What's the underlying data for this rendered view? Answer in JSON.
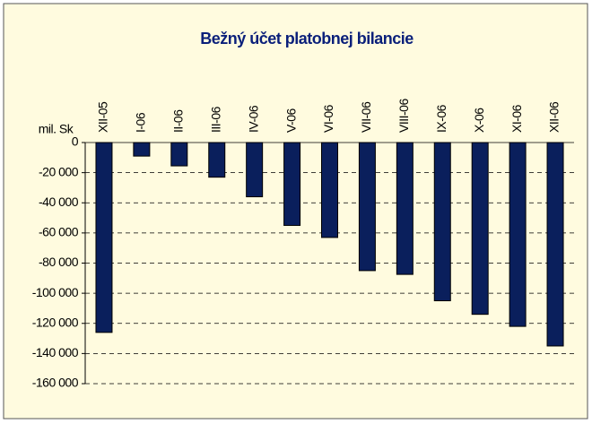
{
  "chart_data": {
    "type": "bar",
    "title": "Bežný účet platobnej bilancie",
    "y_label": "mil. Sk",
    "categories": [
      "XII-05",
      "I-06",
      "II-06",
      "III-06",
      "IV-06",
      "V-06",
      "VI-06",
      "VII-06",
      "VIII-06",
      "IX-06",
      "X-06",
      "XI-06",
      "XII-06"
    ],
    "values": [
      -126000,
      -9000,
      -15500,
      -23000,
      -36000,
      -55000,
      -63000,
      -85000,
      -87500,
      -105000,
      -114000,
      -122000,
      -135000
    ],
    "color": "#0a1f5c",
    "ylim": [
      -160000,
      0
    ],
    "yticks": [
      0,
      {
        "value": -20000,
        "label": "-20 000"
      },
      {
        "value": -40000,
        "label": "-40 000"
      },
      {
        "value": -60000,
        "label": "-60 000"
      },
      {
        "value": -80000,
        "label": "-80 000"
      },
      {
        "value": -100000,
        "label": "-100 000"
      },
      {
        "value": -120000,
        "label": "-120 000"
      },
      {
        "value": -140000,
        "label": "-140 000"
      },
      {
        "value": -160000,
        "label": "-160 000"
      }
    ],
    "grid": true
  }
}
